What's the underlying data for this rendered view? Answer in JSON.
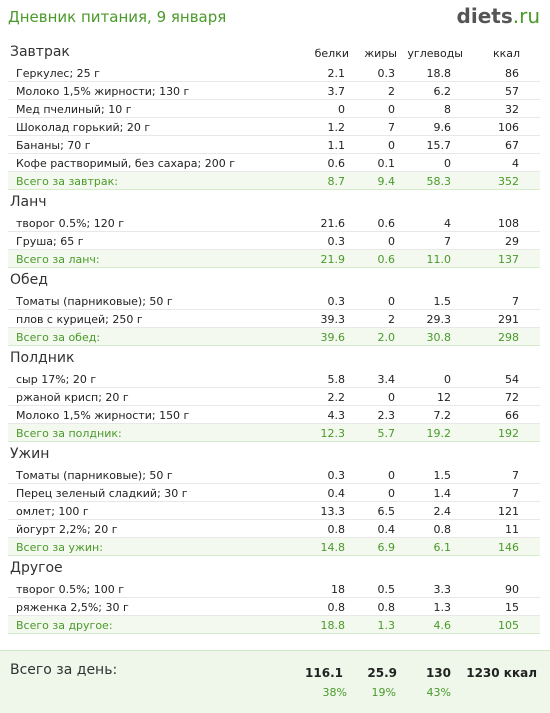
{
  "header": {
    "title": "Дневник питания, 9 января",
    "logo": "diets",
    "logo_suffix": ".ru"
  },
  "columns": [
    "белки",
    "жиры",
    "углеводы",
    "ккал"
  ],
  "sections": [
    {
      "title": "Завтрак",
      "rows": [
        [
          "Геркулес; 25 г",
          "2.1",
          "0.3",
          "18.8",
          "86"
        ],
        [
          "Молоко 1,5% жирности; 130 г",
          "3.7",
          "2",
          "6.2",
          "57"
        ],
        [
          "Мед пчелиный; 10 г",
          "0",
          "0",
          "8",
          "32"
        ],
        [
          "Шоколад горький; 20 г",
          "1.2",
          "7",
          "9.6",
          "106"
        ],
        [
          "Бананы; 70 г",
          "1.1",
          "0",
          "15.7",
          "67"
        ],
        [
          "Кофе растворимый, без сахара; 200 г",
          "0.6",
          "0.1",
          "0",
          "4"
        ]
      ],
      "total": [
        "Всего за завтрак:",
        "8.7",
        "9.4",
        "58.3",
        "352"
      ]
    },
    {
      "title": "Ланч",
      "rows": [
        [
          "творог 0.5%; 120 г",
          "21.6",
          "0.6",
          "4",
          "108"
        ],
        [
          "Груша; 65 г",
          "0.3",
          "0",
          "7",
          "29"
        ]
      ],
      "total": [
        "Всего за ланч:",
        "21.9",
        "0.6",
        "11.0",
        "137"
      ]
    },
    {
      "title": "Обед",
      "rows": [
        [
          "Томаты (парниковые); 50 г",
          "0.3",
          "0",
          "1.5",
          "7"
        ],
        [
          "плов с курицей; 250 г",
          "39.3",
          "2",
          "29.3",
          "291"
        ]
      ],
      "total": [
        "Всего за обед:",
        "39.6",
        "2.0",
        "30.8",
        "298"
      ]
    },
    {
      "title": "Полдник",
      "rows": [
        [
          "сыр 17%; 20 г",
          "5.8",
          "3.4",
          "0",
          "54"
        ],
        [
          "ржаной крисп; 20 г",
          "2.2",
          "0",
          "12",
          "72"
        ],
        [
          "Молоко 1,5% жирности; 150 г",
          "4.3",
          "2.3",
          "7.2",
          "66"
        ]
      ],
      "total": [
        "Всего за полдник:",
        "12.3",
        "5.7",
        "19.2",
        "192"
      ]
    },
    {
      "title": "Ужин",
      "rows": [
        [
          "Томаты (парниковые); 50 г",
          "0.3",
          "0",
          "1.5",
          "7"
        ],
        [
          "Перец зеленый сладкий; 30 г",
          "0.4",
          "0",
          "1.4",
          "7"
        ],
        [
          "омлет; 100 г",
          "13.3",
          "6.5",
          "2.4",
          "121"
        ],
        [
          "йогурт 2,2%; 20 г",
          "0.8",
          "0.4",
          "0.8",
          "11"
        ]
      ],
      "total": [
        "Всего за ужин:",
        "14.8",
        "6.9",
        "6.1",
        "146"
      ]
    },
    {
      "title": "Другое",
      "rows": [
        [
          "творог 0.5%; 100 г",
          "18",
          "0.5",
          "3.3",
          "90"
        ],
        [
          "ряженка 2,5%; 30 г",
          "0.8",
          "0.8",
          "1.3",
          "15"
        ]
      ],
      "total": [
        "Всего за другое:",
        "18.8",
        "1.3",
        "4.6",
        "105"
      ]
    }
  ],
  "footer": {
    "label": "Всего за день:",
    "values": [
      "116.1",
      "25.9",
      "130",
      "1230 ккал"
    ],
    "percents": [
      "38%",
      "19%",
      "43%"
    ]
  }
}
